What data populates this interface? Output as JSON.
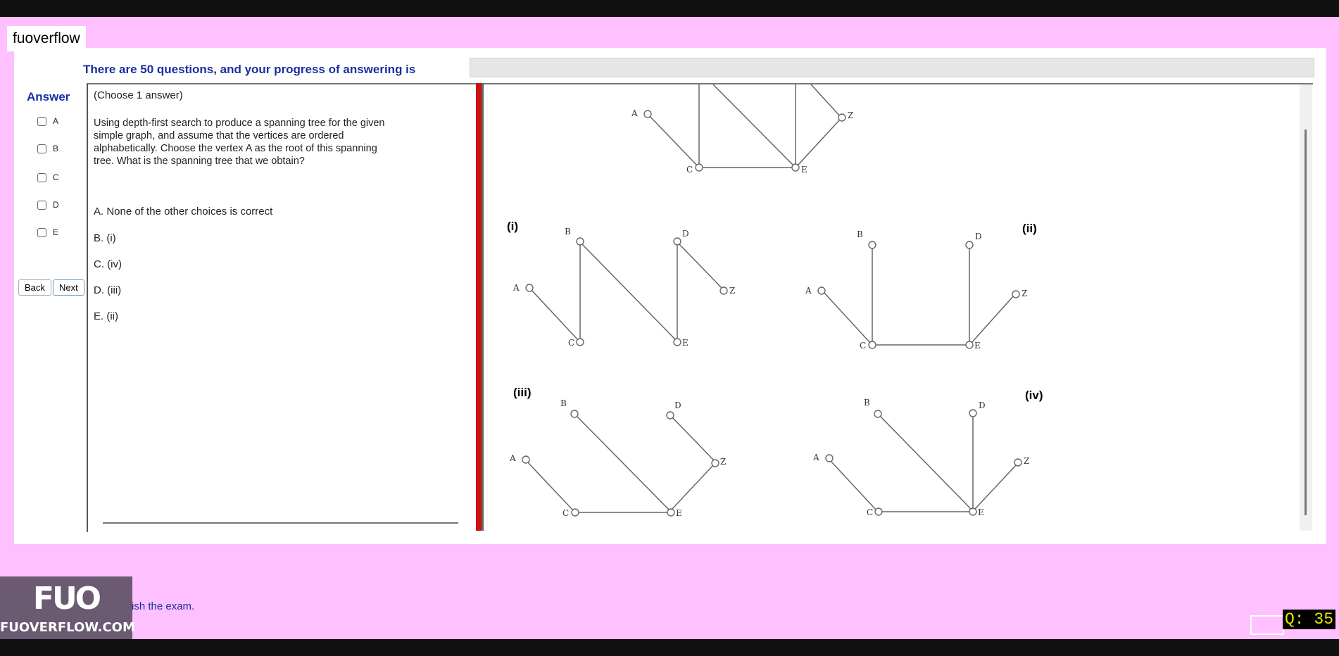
{
  "brand": "fuoverflow",
  "progress": {
    "label": "There are 50 questions, and your progress of answering is",
    "fraction": 0.0
  },
  "answer": {
    "title": "Answer",
    "options": [
      "A",
      "B",
      "C",
      "D",
      "E"
    ]
  },
  "nav": {
    "back": "Back",
    "next": "Next"
  },
  "question": {
    "instruction": "(Choose 1 answer)",
    "text": "Using depth-first search to produce a spanning tree for the given simple graph, and assume that the vertices are ordered alphabetically. Choose the vertex A as the root of this spanning tree. What is the spanning tree that we obtain?",
    "choices": [
      "A. None of the other choices is correct",
      "B. (i)",
      "C. (iv)",
      "D. (iii)",
      "E. (ii)"
    ]
  },
  "figure": {
    "labels": [
      "(i)",
      "(ii)",
      "(iii)",
      "(iv)"
    ],
    "vertices": [
      "A",
      "B",
      "C",
      "D",
      "E",
      "Z"
    ]
  },
  "finish": {
    "label": "ish the exam."
  },
  "logo": {
    "mark": "FUO",
    "text": "FUOVERFLOW.COM"
  },
  "counter": "Q: 35"
}
